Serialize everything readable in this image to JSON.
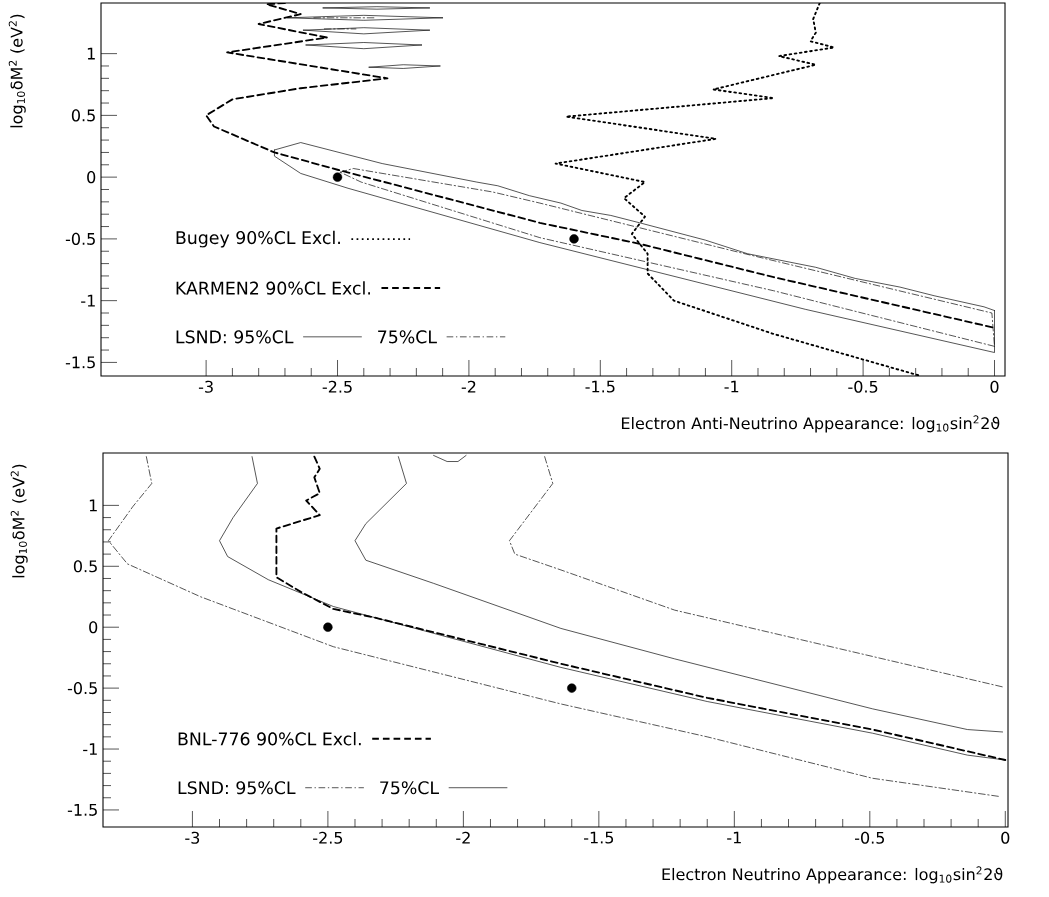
{
  "chart_data": [
    {
      "type": "line",
      "xlabel": "Electron Anti-Neutrino Appearance: log$_{10}$sin$^{2}$2ϑ",
      "ylabel": "log$_{10}$δM$^{2}$ (eV$^{2}$)",
      "xlim": [
        -3.4,
        0.04
      ],
      "ylim": [
        -1.61,
        1.41
      ],
      "xticks": [
        -3,
        -2.5,
        -2,
        -1.5,
        -1,
        -0.5,
        0
      ],
      "yticks": [
        -1.5,
        -1,
        -0.5,
        0,
        0.5,
        1
      ],
      "legend": "bottom left",
      "series": [
        {
          "name": "Bugey 90%CL Excl.",
          "color": "#000000",
          "line_style": "dotted",
          "x": [
            -0.665,
            -0.69,
            -0.68,
            -0.7,
            -0.61,
            -0.82,
            -0.68,
            -1.07,
            -0.84,
            -1.63,
            -1.06,
            -1.67,
            -1.33,
            -1.41,
            -1.33,
            -1.38,
            -1.32,
            -1.32,
            -1.22,
            -0.84,
            -0.28
          ],
          "values": [
            1.41,
            1.28,
            1.17,
            1.1,
            1.05,
            0.98,
            0.91,
            0.71,
            0.64,
            0.49,
            0.31,
            0.11,
            -0.04,
            -0.17,
            -0.32,
            -0.46,
            -0.62,
            -0.78,
            -1.0,
            -1.27,
            -1.61
          ]
        },
        {
          "name": "KARMEN2 90%CL Excl.",
          "color": "#000000",
          "line_style": "dashed",
          "x": [
            -2.7,
            -2.77,
            -2.64,
            -2.8,
            -2.54,
            -2.92,
            -2.31,
            -2.64,
            -2.9,
            -3.0,
            -2.97,
            -2.74,
            -2.5,
            -1.73,
            -1.35,
            -0.84,
            0.0
          ],
          "values": [
            1.41,
            1.4,
            1.32,
            1.24,
            1.13,
            1.01,
            0.8,
            0.72,
            0.63,
            0.5,
            0.41,
            0.2,
            0.06,
            -0.37,
            -0.54,
            -0.81,
            -1.22
          ]
        },
        {
          "name": "LSND: 95%CL",
          "color": "#000000",
          "line_style": "solid",
          "x": [
            -2.74,
            -2.64,
            -2.33,
            -1.97,
            -1.89,
            -1.77,
            -1.65,
            -1.57,
            -1.46,
            -1.35,
            -1.1,
            -0.94,
            -0.68,
            -0.53,
            -0.36,
            -0.23,
            -0.04,
            0.0
          ],
          "values": [
            0.22,
            0.28,
            0.11,
            -0.04,
            -0.07,
            -0.15,
            -0.21,
            -0.27,
            -0.31,
            -0.37,
            -0.51,
            -0.62,
            -0.73,
            -0.82,
            -0.89,
            -0.96,
            -1.05,
            -1.08
          ]
        },
        {
          "color": "#000000",
          "line_style": "solid",
          "x": [
            0.0,
            0.0,
            -0.72,
            -1.73,
            -2.46,
            -2.64,
            -2.74,
            -2.74
          ],
          "values": [
            -1.08,
            -1.42,
            -1.07,
            -0.53,
            -0.09,
            0.03,
            0.17,
            0.22
          ]
        },
        {
          "name": "75%CL",
          "color": "#000000",
          "line_style": "dashdot",
          "x": [
            -2.49,
            -2.44,
            -1.91,
            -1.73,
            -0.97,
            -0.01,
            0.0
          ],
          "values": [
            0.04,
            0.07,
            -0.12,
            -0.21,
            -0.61,
            -1.1,
            -1.37
          ]
        },
        {
          "color": "#000000",
          "line_style": "dashdot",
          "x": [
            0.0,
            -0.84,
            -1.73,
            -2.41,
            -2.49
          ],
          "values": [
            -1.37,
            -0.92,
            -0.49,
            -0.04,
            0.04
          ]
        },
        {
          "color": "#000000",
          "line_style": "solid",
          "x": [
            -2.555,
            -2.35,
            -2.15
          ],
          "values": [
            1.37,
            1.38,
            1.37
          ]
        },
        {
          "color": "#000000",
          "line_style": "solid",
          "x": [
            -2.15,
            -2.35,
            -2.555
          ],
          "values": [
            1.37,
            1.36,
            1.37
          ]
        },
        {
          "color": "#000000",
          "line_style": "solid",
          "x": [
            -2.69,
            -2.4,
            -2.1
          ],
          "values": [
            1.29,
            1.31,
            1.29
          ]
        },
        {
          "color": "#000000",
          "line_style": "solid",
          "x": [
            -2.1,
            -2.4,
            -2.69
          ],
          "values": [
            1.29,
            1.27,
            1.29
          ]
        },
        {
          "color": "#000000",
          "line_style": "solid",
          "x": [
            -2.63,
            -2.4,
            -2.15
          ],
          "values": [
            1.19,
            1.21,
            1.19
          ]
        },
        {
          "color": "#000000",
          "line_style": "solid",
          "x": [
            -2.15,
            -2.4,
            -2.63
          ],
          "values": [
            1.19,
            1.16,
            1.19
          ]
        },
        {
          "color": "#000000",
          "line_style": "solid",
          "x": [
            -2.62,
            -2.4,
            -2.18
          ],
          "values": [
            1.07,
            1.09,
            1.07
          ]
        },
        {
          "color": "#000000",
          "line_style": "solid",
          "x": [
            -2.18,
            -2.4,
            -2.62
          ],
          "values": [
            1.07,
            1.04,
            1.07
          ]
        },
        {
          "color": "#000000",
          "line_style": "solid",
          "x": [
            -2.38,
            -2.25,
            -2.11
          ],
          "values": [
            0.89,
            0.91,
            0.9
          ]
        },
        {
          "color": "#000000",
          "line_style": "solid",
          "x": [
            -2.11,
            -2.25,
            -2.38
          ],
          "values": [
            0.9,
            0.88,
            0.89
          ]
        },
        {
          "color": "#000000",
          "line_style": "dashdot",
          "x": [
            -2.59,
            -2.36
          ],
          "values": [
            1.29,
            1.29
          ]
        },
        {
          "color": "#000000",
          "line_style": "dashdot",
          "x": [
            -2.55,
            -2.43
          ],
          "values": [
            1.2,
            1.2
          ]
        },
        {
          "type": "scatter",
          "color": "#000000",
          "marker": "circle",
          "x": [
            -2.5,
            -1.6
          ],
          "values": [
            0,
            -0.5
          ]
        }
      ]
    },
    {
      "type": "line",
      "xlabel": "Electron Neutrino Appearance: log$_{10}$sin$^{2}$2ϑ",
      "ylabel": "log$_{10}$δM$^{2}$ (eV$^{2}$)",
      "xlim": [
        -3.33,
        0.01
      ],
      "ylim": [
        -1.64,
        1.43
      ],
      "xticks": [
        -3,
        -2.5,
        -2,
        -1.5,
        -1,
        -0.5,
        0
      ],
      "yticks": [
        -1.5,
        -1,
        -0.5,
        0,
        0.5,
        1
      ],
      "legend": "bottom left",
      "series": [
        {
          "name": "BNL-776 90%CL Excl.",
          "color": "#000000",
          "line_style": "dashed",
          "x": [
            -2.55,
            -2.53,
            -2.55,
            -2.53,
            -2.58,
            -2.53,
            -2.69,
            -2.69,
            -2.6,
            -2.48,
            -2.33,
            -1.64,
            -1.1,
            -0.49,
            0.0
          ],
          "values": [
            1.4,
            1.3,
            1.23,
            1.1,
            1.04,
            0.92,
            0.81,
            0.41,
            0.29,
            0.15,
            0.08,
            -0.3,
            -0.58,
            -0.84,
            -1.09
          ]
        },
        {
          "name": "LSND: 95%CL",
          "color": "#000000",
          "line_style": "dashdot",
          "x": [
            -3.17,
            -3.15,
            -3.22,
            -3.31,
            -3.24,
            -2.97,
            -2.48,
            -1.64,
            -1.1,
            -0.49,
            -0.02
          ],
          "values": [
            1.4,
            1.18,
            0.99,
            0.71,
            0.52,
            0.25,
            -0.16,
            -0.63,
            -0.9,
            -1.24,
            -1.39
          ]
        },
        {
          "name": "75%CL",
          "color": "#000000",
          "line_style": "solid",
          "x": [
            -2.78,
            -2.76,
            -2.85,
            -2.9,
            -2.87,
            -2.72,
            -2.48,
            -1.64,
            -1.1,
            -0.49,
            -0.14,
            0.0
          ],
          "values": [
            1.4,
            1.18,
            0.9,
            0.71,
            0.58,
            0.39,
            0.17,
            -0.33,
            -0.61,
            -0.87,
            -1.05,
            -1.09
          ]
        },
        {
          "color": "#000000",
          "line_style": "dashdot",
          "x": [
            -1.7,
            -1.67,
            -1.83,
            -1.81,
            -1.64,
            -1.22,
            -0.49,
            -0.01
          ],
          "values": [
            1.4,
            1.18,
            0.71,
            0.6,
            0.47,
            0.14,
            -0.24,
            -0.49
          ]
        },
        {
          "color": "#000000",
          "line_style": "solid",
          "x": [
            -2.24,
            -2.21,
            -2.36,
            -2.4,
            -2.36,
            -2.11,
            -1.64,
            -1.22,
            -0.49,
            -0.14,
            -0.01
          ],
          "values": [
            1.4,
            1.18,
            0.85,
            0.71,
            0.55,
            0.36,
            -0.01,
            -0.26,
            -0.67,
            -0.84,
            -0.86
          ]
        },
        {
          "color": "#000000",
          "line_style": "solid",
          "x": [
            -2.11,
            -2.06,
            -2.02,
            -1.99
          ],
          "values": [
            1.41,
            1.36,
            1.36,
            1.41
          ]
        },
        {
          "type": "scatter",
          "color": "#000000",
          "marker": "circle",
          "x": [
            -2.5,
            -1.6
          ],
          "values": [
            0,
            -0.5
          ]
        }
      ]
    }
  ]
}
